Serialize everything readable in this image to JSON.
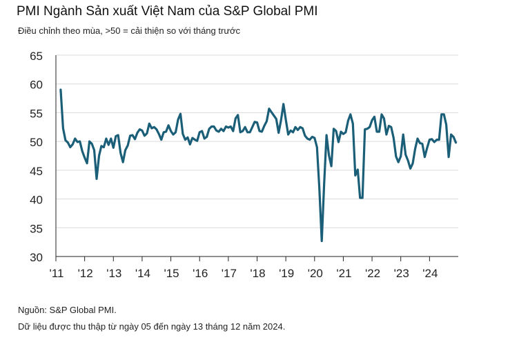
{
  "header": {
    "title": "PMI Ngành Sản xuất Việt Nam của S&P Global PMI",
    "subtitle": "Điều chỉnh theo mùa, >50 = cải thiện so với tháng trước"
  },
  "footer": {
    "source": "Nguồn: S&P Global PMI.",
    "note": "Dữ liệu được thu thập từ ngày 05 đến ngày 13 tháng 12 năm 2024."
  },
  "colors": {
    "line": "#1b5e78",
    "grid": "#d9d9d9",
    "axis": "#222222"
  },
  "chart_data": {
    "type": "line",
    "title": "PMI Ngành Sản xuất Việt Nam của S&P Global PMI",
    "subtitle": "Điều chỉnh theo mùa, >50 = cải thiện so với tháng trước",
    "xlabel": "",
    "ylabel": "",
    "ylim": [
      30,
      65
    ],
    "yticks": [
      30,
      35,
      40,
      45,
      50,
      55,
      60,
      65
    ],
    "xticks": [
      {
        "label": "'11",
        "t": 2011.0
      },
      {
        "label": "'12",
        "t": 2012.0
      },
      {
        "label": "'13",
        "t": 2013.0
      },
      {
        "label": "'14",
        "t": 2014.0
      },
      {
        "label": "'15",
        "t": 2015.0
      },
      {
        "label": "'16",
        "t": 2016.0
      },
      {
        "label": "'17",
        "t": 2017.0
      },
      {
        "label": "'18",
        "t": 2018.0
      },
      {
        "label": "'19",
        "t": 2019.0
      },
      {
        "label": "'20",
        "t": 2020.0
      },
      {
        "label": "'21",
        "t": 2021.0
      },
      {
        "label": "'22",
        "t": 2022.0
      },
      {
        "label": "'23",
        "t": 2023.0
      },
      {
        "label": "'24",
        "t": 2024.0
      }
    ],
    "start": "2011-03",
    "xrange": [
      2011.0,
      2025.0
    ],
    "grid": true,
    "series": [
      {
        "name": "PMI Ngành Sản xuất Việt Nam",
        "frequency": "monthly",
        "values": [
          59.0,
          52.3,
          50.2,
          49.8,
          49.0,
          49.5,
          50.5,
          49.9,
          50.0,
          48.3,
          47.2,
          46.2,
          50.0,
          49.6,
          48.5,
          43.5,
          47.5,
          49.2,
          49.0,
          50.5,
          49.4,
          50.5,
          48.9,
          50.9,
          51.1,
          48.0,
          46.4,
          48.5,
          49.3,
          51.0,
          51.1,
          50.4,
          51.5,
          52.1,
          51.9,
          51.0,
          51.4,
          53.1,
          52.3,
          52.5,
          52.1,
          51.3,
          50.3,
          51.6,
          51.7,
          52.8,
          51.8,
          51.2,
          51.6,
          53.8,
          54.8,
          51.3,
          50.3,
          50.7,
          49.5,
          50.6,
          50.3,
          50.1,
          51.6,
          51.8,
          50.5,
          50.8,
          52.2,
          52.6,
          52.6,
          51.9,
          51.7,
          52.2,
          51.8,
          52.6,
          52.4,
          52.6,
          51.8,
          54.0,
          54.6,
          51.6,
          51.8,
          52.5,
          51.6,
          51.6,
          52.5,
          53.4,
          53.3,
          51.8,
          51.7,
          52.7,
          53.5,
          55.7,
          55.1,
          54.5,
          53.9,
          51.5,
          53.7,
          56.5,
          53.8,
          51.2,
          51.9,
          51.6,
          52.5,
          52.0,
          52.5,
          52.3,
          51.0,
          50.5,
          50.3,
          50.8,
          50.6,
          49.0,
          41.9,
          32.7,
          42.7,
          51.1,
          47.6,
          45.7,
          52.2,
          51.8,
          49.9,
          51.7,
          51.3,
          51.6,
          53.6,
          54.7,
          53.1,
          44.1,
          45.1,
          40.2,
          40.2,
          52.1,
          52.2,
          52.5,
          53.7,
          54.3,
          51.7,
          51.7,
          54.7,
          54.0,
          51.2,
          52.7,
          52.5,
          50.6,
          47.4,
          46.4,
          47.4,
          51.2,
          47.7,
          46.7,
          45.3,
          46.2,
          48.7,
          50.5,
          49.7,
          49.6,
          47.3,
          48.9,
          50.3,
          50.4,
          49.9,
          50.3,
          50.3,
          54.7,
          54.7,
          52.9,
          47.3,
          51.2,
          50.8,
          49.8
        ]
      }
    ]
  }
}
